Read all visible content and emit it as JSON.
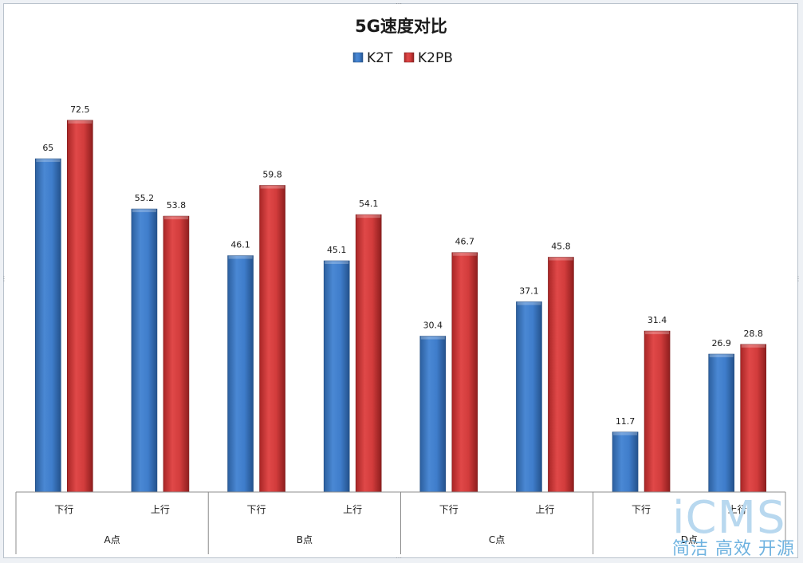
{
  "chart_data": {
    "type": "bar",
    "title": "5G速度对比",
    "categories": [
      "下行",
      "上行",
      "下行",
      "上行",
      "下行",
      "上行",
      "下行",
      "上行"
    ],
    "groups": [
      {
        "label": "A点",
        "span": 2
      },
      {
        "label": "B点",
        "span": 2
      },
      {
        "label": "C点",
        "span": 2
      },
      {
        "label": "D点",
        "span": 2
      }
    ],
    "series": [
      {
        "name": "K2T",
        "color": "#3a78c8",
        "values": [
          65,
          55.2,
          46.1,
          45.1,
          30.4,
          37.1,
          11.7,
          26.9
        ]
      },
      {
        "name": "K2PB",
        "color": "#d13a3a",
        "values": [
          72.5,
          53.8,
          59.8,
          54.1,
          46.7,
          45.8,
          31.4,
          28.8
        ]
      }
    ],
    "ylim": [
      0,
      80
    ],
    "grid": false,
    "legend": "top",
    "data_labels": true
  },
  "watermark": {
    "logo": "iCMS",
    "slogan": "简洁 高效 开源"
  }
}
